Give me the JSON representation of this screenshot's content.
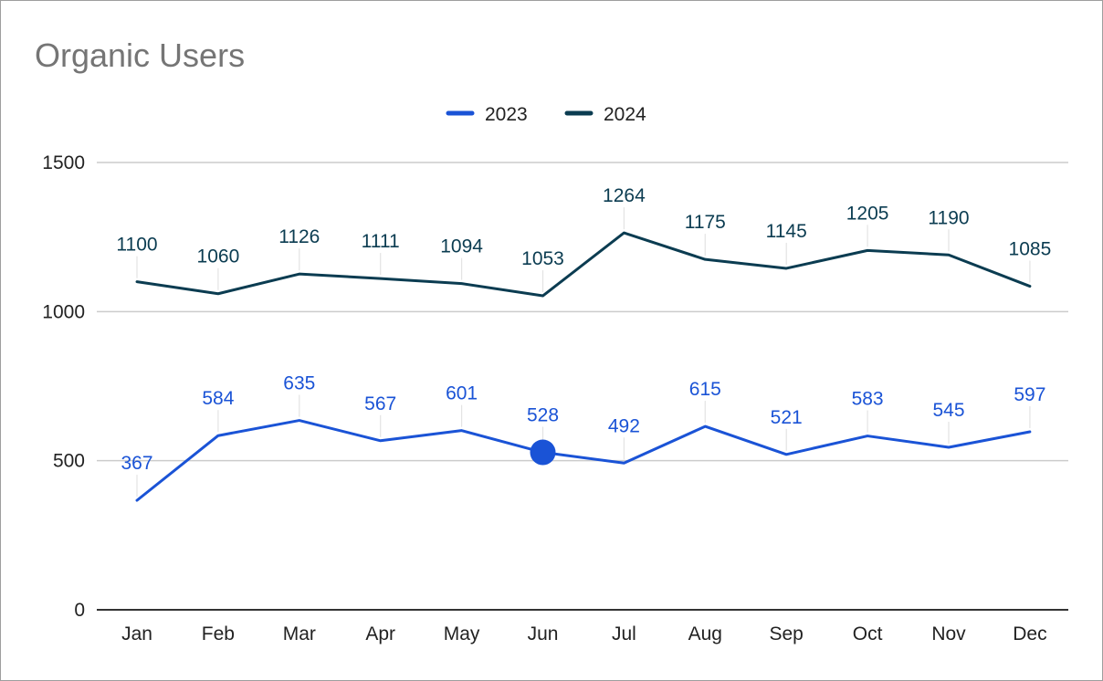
{
  "chart_data": {
    "type": "line",
    "title": "Organic Users",
    "xlabel": "",
    "ylabel": "",
    "categories": [
      "Jan",
      "Feb",
      "Mar",
      "Apr",
      "May",
      "Jun",
      "Jul",
      "Aug",
      "Sep",
      "Oct",
      "Nov",
      "Dec"
    ],
    "series": [
      {
        "name": "2023",
        "color": "#1a53d6",
        "values": [
          367,
          584,
          635,
          567,
          601,
          528,
          492,
          615,
          521,
          583,
          545,
          597
        ]
      },
      {
        "name": "2024",
        "color": "#0b3c51",
        "values": [
          1100,
          1060,
          1126,
          1111,
          1094,
          1053,
          1264,
          1175,
          1145,
          1205,
          1190,
          1085
        ]
      }
    ],
    "ylim": [
      0,
      1500
    ],
    "yticks": [
      0,
      500,
      1000,
      1500
    ],
    "grid": true,
    "legend": "top-center",
    "data_labels": true,
    "highlighted_point": {
      "series": "2023",
      "category": "Jun",
      "value": 528
    }
  }
}
